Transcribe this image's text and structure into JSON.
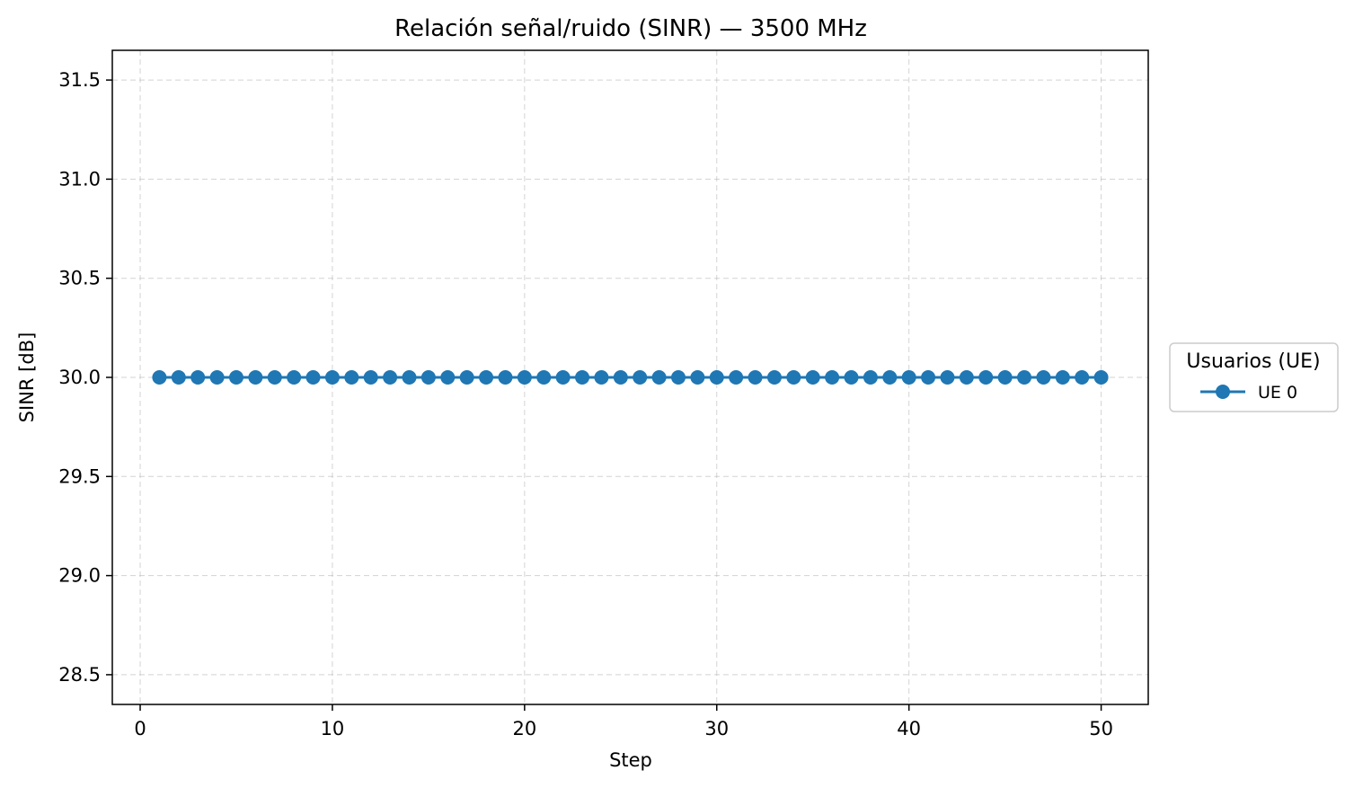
{
  "chart_data": {
    "type": "line",
    "title": "Relación señal/ruido (SINR) — 3500 MHz",
    "xlabel": "Step",
    "ylabel": "SINR [dB]",
    "xlim": [
      -1.45,
      52.45
    ],
    "ylim": [
      28.35,
      31.65
    ],
    "xticks": [
      0,
      10,
      20,
      30,
      40,
      50
    ],
    "yticks": [
      28.5,
      29.0,
      29.5,
      30.0,
      30.5,
      31.0,
      31.5
    ],
    "xtick_labels": [
      "0",
      "10",
      "20",
      "30",
      "40",
      "50"
    ],
    "ytick_labels": [
      "28.5",
      "29.0",
      "29.5",
      "30.0",
      "30.5",
      "31.0",
      "31.5"
    ],
    "grid": true,
    "legend": {
      "title": "Usuarios (UE)",
      "placement": "outside-right"
    },
    "x": [
      1,
      2,
      3,
      4,
      5,
      6,
      7,
      8,
      9,
      10,
      11,
      12,
      13,
      14,
      15,
      16,
      17,
      18,
      19,
      20,
      21,
      22,
      23,
      24,
      25,
      26,
      27,
      28,
      29,
      30,
      31,
      32,
      33,
      34,
      35,
      36,
      37,
      38,
      39,
      40,
      41,
      42,
      43,
      44,
      45,
      46,
      47,
      48,
      49,
      50
    ],
    "series": [
      {
        "name": "UE 0",
        "color": "#1f77b4",
        "marker": "circle",
        "values": [
          30,
          30,
          30,
          30,
          30,
          30,
          30,
          30,
          30,
          30,
          30,
          30,
          30,
          30,
          30,
          30,
          30,
          30,
          30,
          30,
          30,
          30,
          30,
          30,
          30,
          30,
          30,
          30,
          30,
          30,
          30,
          30,
          30,
          30,
          30,
          30,
          30,
          30,
          30,
          30,
          30,
          30,
          30,
          30,
          30,
          30,
          30,
          30,
          30,
          30
        ]
      }
    ]
  }
}
